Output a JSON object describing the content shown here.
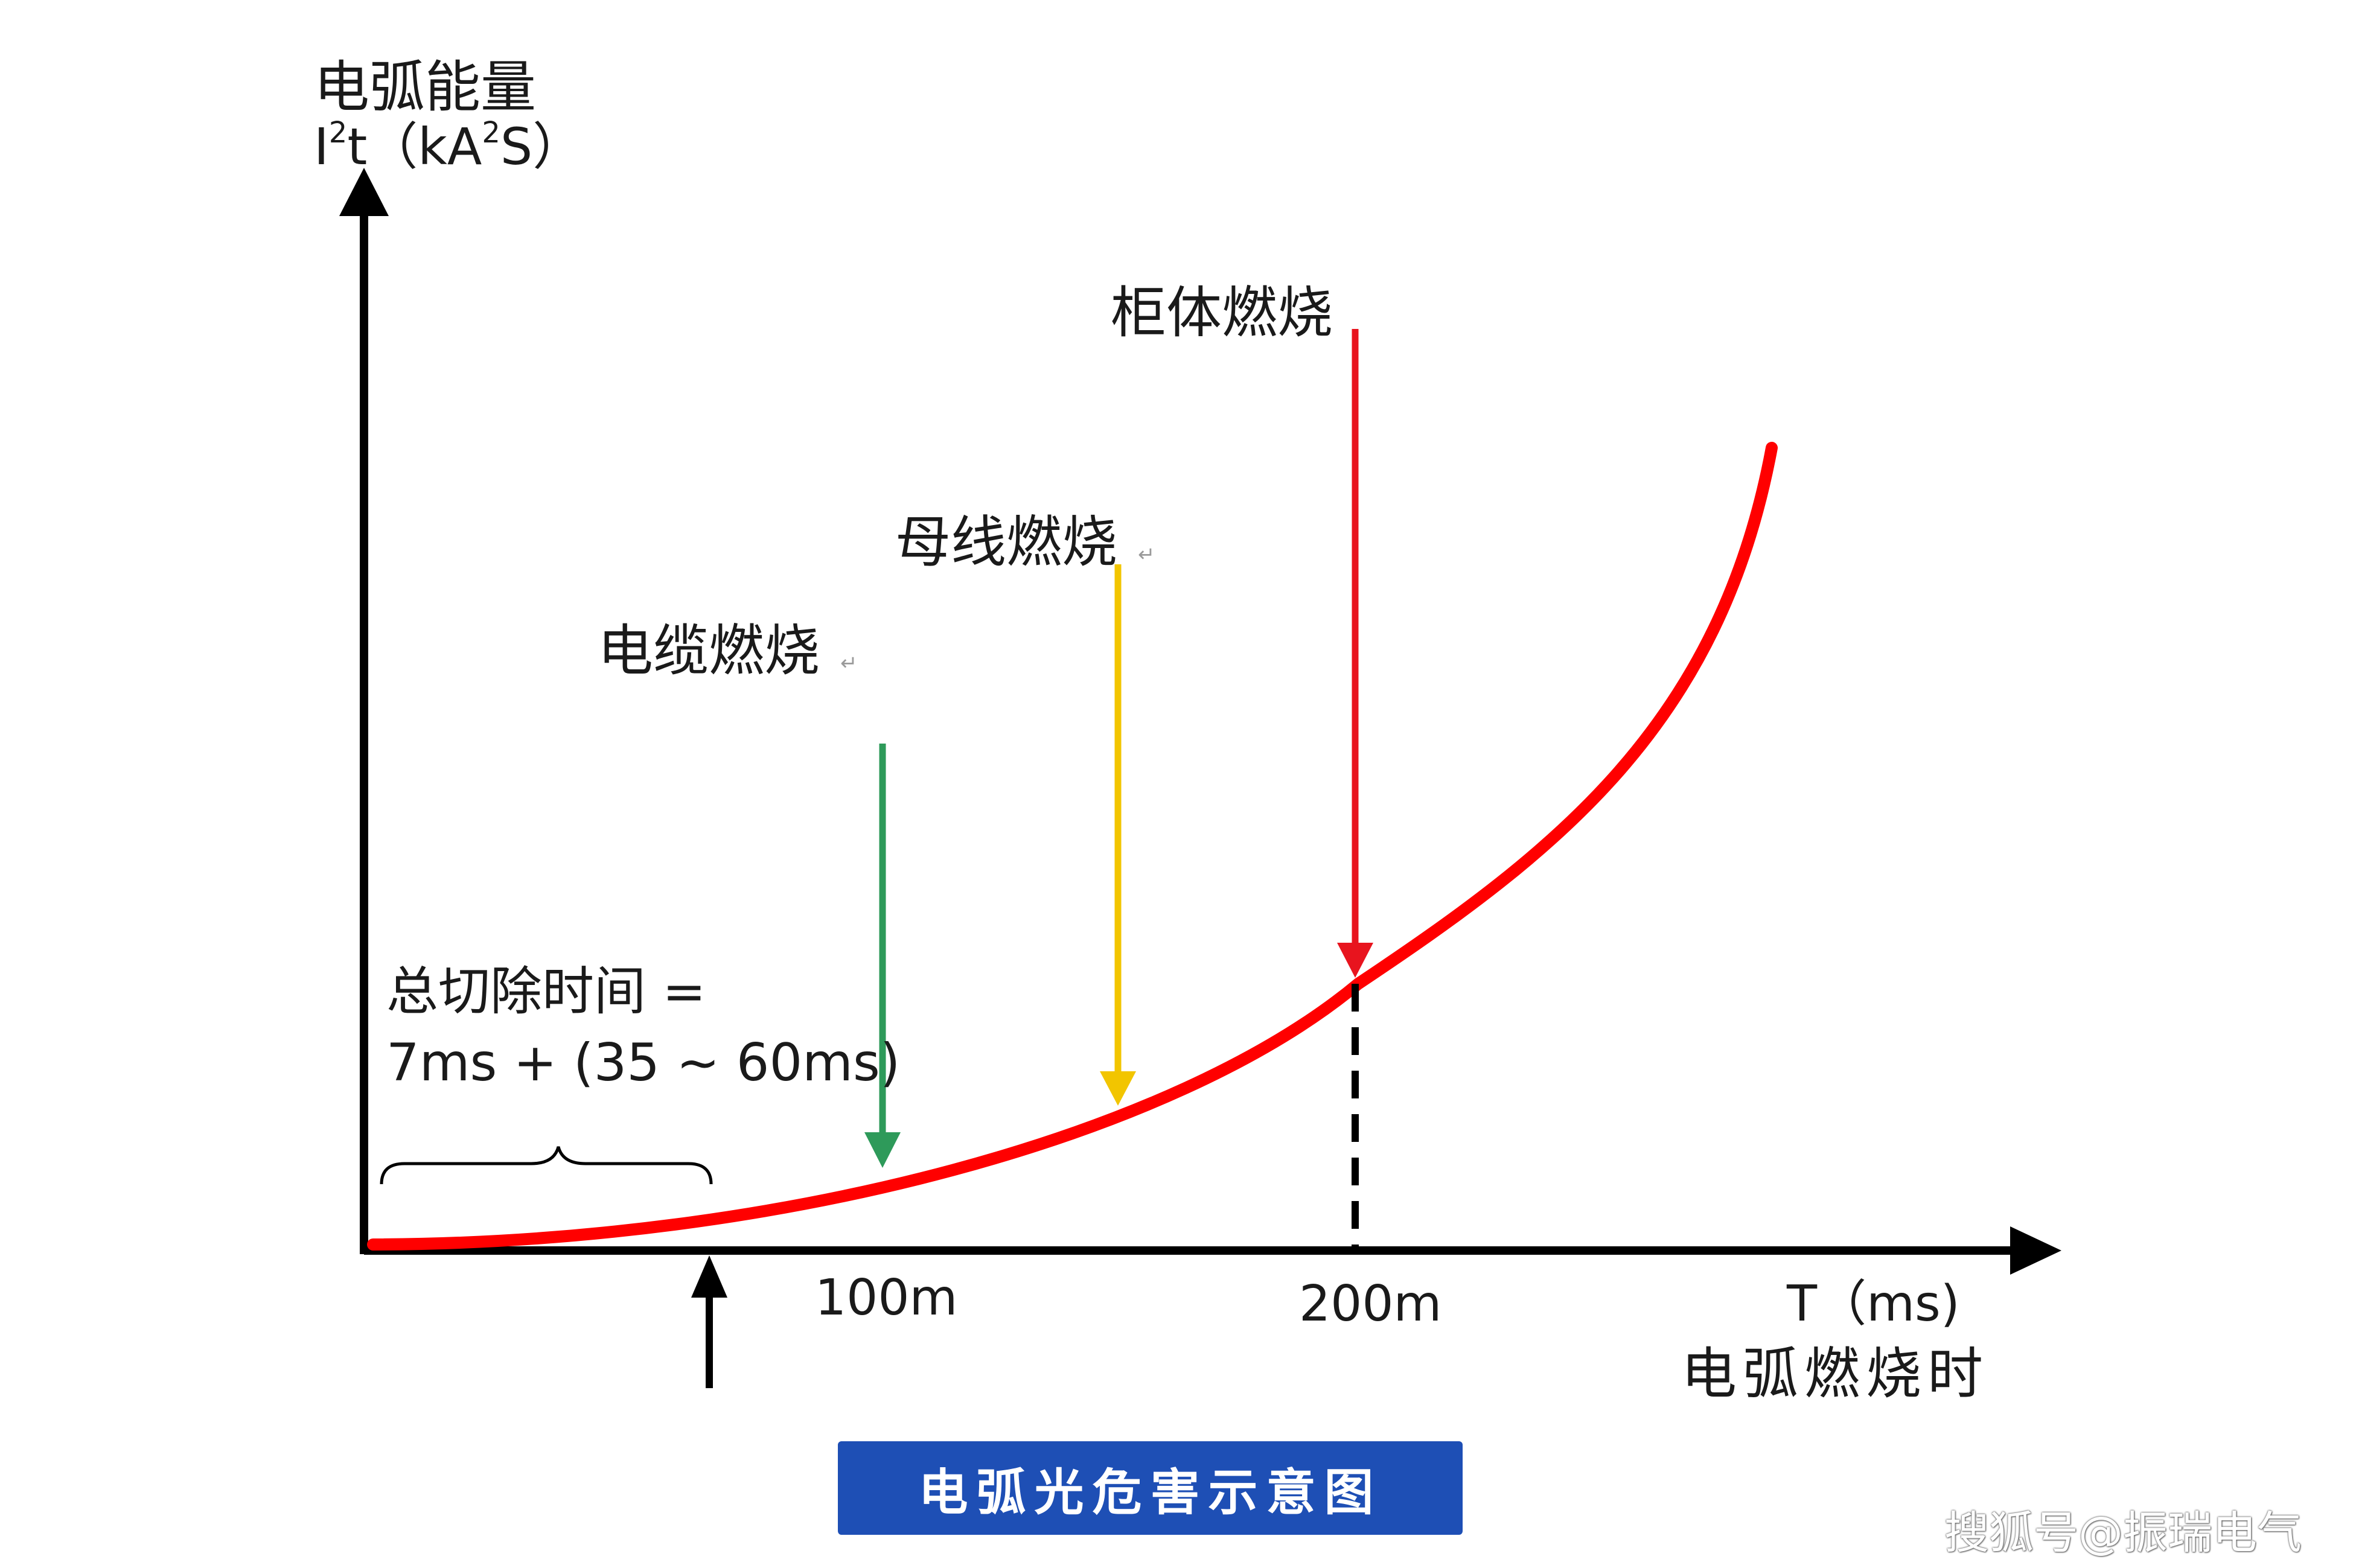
{
  "y_axis": {
    "title": "电弧能量",
    "unit": {
      "i": "I",
      "sq1": "2",
      "t": "t",
      "open": "（kA",
      "sq2": "2",
      "close": "S）"
    }
  },
  "x_axis": {
    "unit": "T（ms)",
    "title": "电弧燃烧时",
    "ticks": [
      "100m",
      "200m"
    ]
  },
  "annotations": {
    "cable": "电缆燃烧",
    "busbar": "母线燃烧",
    "cabinet": "柜体燃烧",
    "clear_time_line1": "总切除时间 =",
    "clear_time_line2": "7ms + (35 ~ 60ms)",
    "return_mark": "↵"
  },
  "colors": {
    "curve": "#ff0000",
    "cable_arrow": "#2e9a5a",
    "busbar_arrow": "#f2c500",
    "cabinet_arrow": "#e8141e",
    "caption_bg": "#1e4fb5"
  },
  "caption": "电弧光危害示意图",
  "watermark": "搜狐号@振瑞电气"
}
